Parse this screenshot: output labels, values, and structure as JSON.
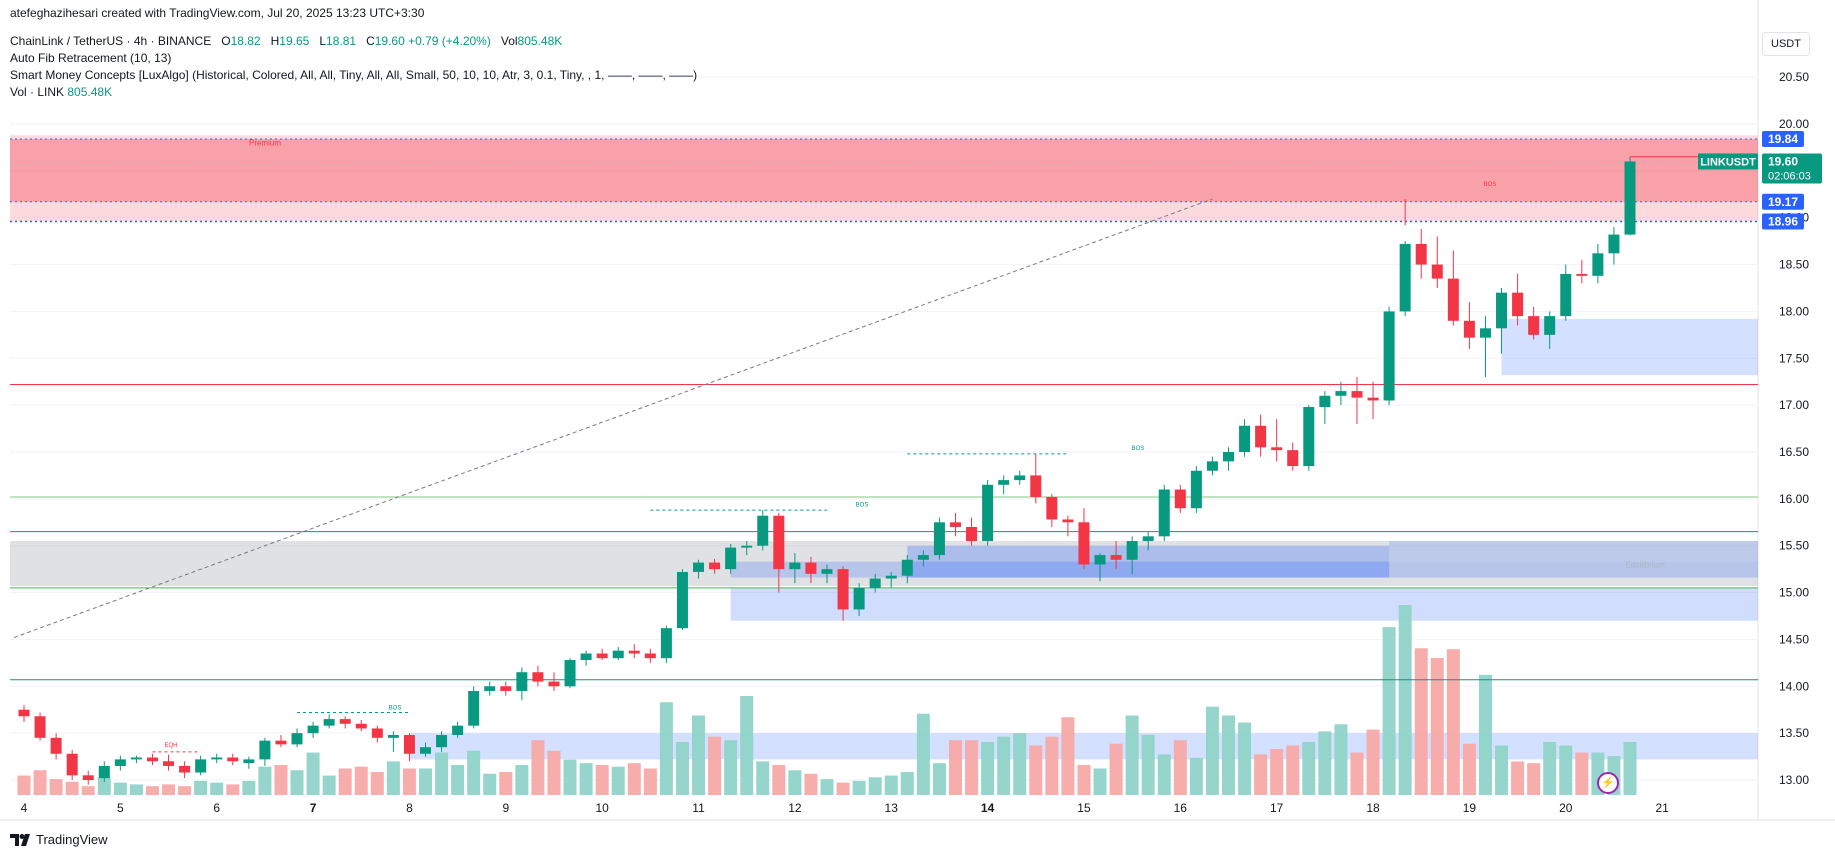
{
  "header": {
    "created_by": "atefeghazihesari created with TradingView.com, Jul 20, 2025 13:23 UTC+3:30",
    "symbol": "ChainLink / TetherUS · 4h · BINANCE",
    "ohlc": {
      "open_label": "O",
      "open": "18.82",
      "high_label": "H",
      "high": "19.65",
      "low_label": "L",
      "low": "18.81",
      "close_label": "C",
      "close": "19.60",
      "change": "+0.79 (+4.20%)",
      "vol_label": "Vol",
      "vol": "805.48K"
    },
    "indicator_1": "Auto Fib Retracement (10, 13)",
    "indicator_2": "Smart Money Concepts [LuxAlgo] (Historical, Colored, All, All, Tiny, All, All, Small, 50, 10, 10, Atr, 3, 0.1, Tiny, , 1, ——, ——, ——)",
    "indicator_3_label": "Vol · LINK",
    "indicator_3_value": "805.48K"
  },
  "currency": "USDT",
  "brand": "TradingView",
  "colors": {
    "up": "#089981",
    "down": "#f23645",
    "premium": "#f23645",
    "discount": "#2962ff",
    "equilibrium": "#b2b5be",
    "volume_up": "#8fd3c8",
    "volume_down": "#f7a9a7"
  },
  "chart_data": {
    "type": "candlestick",
    "timeframe": "4h",
    "ylim": [
      12.85,
      20.8
    ],
    "yticks": [
      "20.50",
      "20.00",
      "19.50",
      "19.00",
      "18.50",
      "18.00",
      "17.50",
      "17.00",
      "16.50",
      "16.00",
      "15.50",
      "15.00",
      "14.50",
      "14.00",
      "13.50",
      "13.00"
    ],
    "xticks": [
      "4",
      "5",
      "6",
      "7",
      "8",
      "9",
      "10",
      "11",
      "12",
      "13",
      "14",
      "15",
      "16",
      "17",
      "18",
      "19",
      "20",
      "21"
    ],
    "candles": [
      [
        13.75,
        13.8,
        13.62,
        13.68
      ],
      [
        13.68,
        13.72,
        13.42,
        13.45
      ],
      [
        13.45,
        13.5,
        13.22,
        13.28
      ],
      [
        13.28,
        13.32,
        13.0,
        13.05
      ],
      [
        13.05,
        13.1,
        12.95,
        13.0
      ],
      [
        13.02,
        13.2,
        12.98,
        13.15
      ],
      [
        13.15,
        13.26,
        13.1,
        13.22
      ],
      [
        13.22,
        13.26,
        13.18,
        13.24
      ],
      [
        13.24,
        13.28,
        13.16,
        13.2
      ],
      [
        13.2,
        13.27,
        13.1,
        13.15
      ],
      [
        13.15,
        13.2,
        13.02,
        13.08
      ],
      [
        13.08,
        13.26,
        13.05,
        13.22
      ],
      [
        13.22,
        13.28,
        13.18,
        13.24
      ],
      [
        13.24,
        13.28,
        13.16,
        13.2
      ],
      [
        13.18,
        13.25,
        13.12,
        13.22
      ],
      [
        13.22,
        13.45,
        13.15,
        13.42
      ],
      [
        13.42,
        13.48,
        13.35,
        13.38
      ],
      [
        13.38,
        13.55,
        13.35,
        13.5
      ],
      [
        13.5,
        13.62,
        13.45,
        13.58
      ],
      [
        13.58,
        13.7,
        13.55,
        13.65
      ],
      [
        13.65,
        13.68,
        13.55,
        13.6
      ],
      [
        13.6,
        13.64,
        13.52,
        13.55
      ],
      [
        13.55,
        13.58,
        13.4,
        13.45
      ],
      [
        13.45,
        13.52,
        13.3,
        13.48
      ],
      [
        13.48,
        13.5,
        13.2,
        13.28
      ],
      [
        13.28,
        13.4,
        13.25,
        13.35
      ],
      [
        13.35,
        13.52,
        13.3,
        13.48
      ],
      [
        13.48,
        13.62,
        13.45,
        13.58
      ],
      [
        13.58,
        14.0,
        13.55,
        13.95
      ],
      [
        13.95,
        14.05,
        13.9,
        14.0
      ],
      [
        14.0,
        14.05,
        13.9,
        13.95
      ],
      [
        13.95,
        14.2,
        13.85,
        14.15
      ],
      [
        14.15,
        14.22,
        14.0,
        14.05
      ],
      [
        14.05,
        14.15,
        13.95,
        14.0
      ],
      [
        14.0,
        14.3,
        13.98,
        14.28
      ],
      [
        14.28,
        14.38,
        14.22,
        14.35
      ],
      [
        14.35,
        14.4,
        14.28,
        14.3
      ],
      [
        14.3,
        14.42,
        14.28,
        14.38
      ],
      [
        14.38,
        14.45,
        14.3,
        14.35
      ],
      [
        14.35,
        14.4,
        14.25,
        14.3
      ],
      [
        14.3,
        14.65,
        14.25,
        14.62
      ],
      [
        14.62,
        15.25,
        14.6,
        15.22
      ],
      [
        15.22,
        15.35,
        15.15,
        15.32
      ],
      [
        15.32,
        15.36,
        15.2,
        15.25
      ],
      [
        15.25,
        15.52,
        15.2,
        15.48
      ],
      [
        15.48,
        15.55,
        15.4,
        15.5
      ],
      [
        15.5,
        15.88,
        15.45,
        15.82
      ],
      [
        15.82,
        15.85,
        15.0,
        15.25
      ],
      [
        15.25,
        15.42,
        15.1,
        15.32
      ],
      [
        15.32,
        15.38,
        15.1,
        15.2
      ],
      [
        15.2,
        15.3,
        15.1,
        15.25
      ],
      [
        15.25,
        15.28,
        14.7,
        14.82
      ],
      [
        14.82,
        15.1,
        14.75,
        15.05
      ],
      [
        15.05,
        15.2,
        15.0,
        15.15
      ],
      [
        15.15,
        15.22,
        15.05,
        15.18
      ],
      [
        15.18,
        15.4,
        15.1,
        15.35
      ],
      [
        15.35,
        15.45,
        15.28,
        15.4
      ],
      [
        15.4,
        15.8,
        15.35,
        15.75
      ],
      [
        15.75,
        15.85,
        15.6,
        15.7
      ],
      [
        15.7,
        15.8,
        15.5,
        15.55
      ],
      [
        15.55,
        16.2,
        15.5,
        16.15
      ],
      [
        16.15,
        16.25,
        16.05,
        16.2
      ],
      [
        16.2,
        16.3,
        16.15,
        16.25
      ],
      [
        16.25,
        16.48,
        15.95,
        16.02
      ],
      [
        16.02,
        16.05,
        15.7,
        15.78
      ],
      [
        15.78,
        15.82,
        15.6,
        15.75
      ],
      [
        15.75,
        15.9,
        15.25,
        15.3
      ],
      [
        15.3,
        15.42,
        15.12,
        15.4
      ],
      [
        15.4,
        15.55,
        15.25,
        15.35
      ],
      [
        15.35,
        15.6,
        15.2,
        15.55
      ],
      [
        15.55,
        15.65,
        15.45,
        15.6
      ],
      [
        15.6,
        16.15,
        15.55,
        16.1
      ],
      [
        16.1,
        16.15,
        15.85,
        15.9
      ],
      [
        15.9,
        16.35,
        15.85,
        16.3
      ],
      [
        16.3,
        16.45,
        16.25,
        16.4
      ],
      [
        16.4,
        16.55,
        16.3,
        16.5
      ],
      [
        16.5,
        16.85,
        16.45,
        16.78
      ],
      [
        16.78,
        16.9,
        16.45,
        16.55
      ],
      [
        16.55,
        16.85,
        16.4,
        16.52
      ],
      [
        16.52,
        16.6,
        16.3,
        16.35
      ],
      [
        16.35,
        17.0,
        16.3,
        16.98
      ],
      [
        16.98,
        17.15,
        16.8,
        17.1
      ],
      [
        17.1,
        17.25,
        17.0,
        17.15
      ],
      [
        17.15,
        17.3,
        16.8,
        17.08
      ],
      [
        17.08,
        17.25,
        16.85,
        17.05
      ],
      [
        17.05,
        18.05,
        17.0,
        18.0
      ],
      [
        18.0,
        18.75,
        17.95,
        18.72
      ],
      [
        18.72,
        18.88,
        18.35,
        18.5
      ],
      [
        18.5,
        18.8,
        18.25,
        18.35
      ],
      [
        18.35,
        18.65,
        17.85,
        17.9
      ],
      [
        17.9,
        18.1,
        17.6,
        17.72
      ],
      [
        17.72,
        17.95,
        17.3,
        17.82
      ],
      [
        17.82,
        18.25,
        17.55,
        18.2
      ],
      [
        18.2,
        18.4,
        17.85,
        17.95
      ],
      [
        17.95,
        18.05,
        17.7,
        17.75
      ],
      [
        17.75,
        18.0,
        17.6,
        17.95
      ],
      [
        17.95,
        18.5,
        17.9,
        18.4
      ],
      [
        18.4,
        18.55,
        18.3,
        18.38
      ],
      [
        18.38,
        18.72,
        18.3,
        18.62
      ],
      [
        18.62,
        18.9,
        18.5,
        18.82
      ],
      [
        18.82,
        19.65,
        18.81,
        19.6
      ]
    ],
    "volumes": [
      0.22,
      0.28,
      0.18,
      0.15,
      0.1,
      0.2,
      0.14,
      0.12,
      0.1,
      0.12,
      0.1,
      0.16,
      0.14,
      0.12,
      0.16,
      0.32,
      0.34,
      0.28,
      0.48,
      0.22,
      0.3,
      0.32,
      0.26,
      0.38,
      0.3,
      0.3,
      0.48,
      0.34,
      0.5,
      0.24,
      0.26,
      0.34,
      0.62,
      0.5,
      0.4,
      0.36,
      0.34,
      0.32,
      0.36,
      0.3,
      1.05,
      0.6,
      0.9,
      0.66,
      0.62,
      1.12,
      0.38,
      0.34,
      0.28,
      0.24,
      0.18,
      0.14,
      0.16,
      0.2,
      0.22,
      0.26,
      0.92,
      0.36,
      0.62,
      0.62,
      0.6,
      0.66,
      0.7,
      0.56,
      0.66,
      0.88,
      0.34,
      0.3,
      0.58,
      0.9,
      0.68,
      0.46,
      0.62,
      0.42,
      1.0,
      0.9,
      0.82,
      0.46,
      0.52,
      0.56,
      0.6,
      0.72,
      0.8,
      0.48,
      0.74,
      1.9,
      2.15,
      1.66,
      1.55,
      1.65,
      0.58,
      1.36,
      0.56,
      0.38,
      0.36,
      0.6,
      0.56,
      0.48,
      0.48,
      0.44,
      0.6
    ],
    "vol_scale_max": 2.15,
    "levels": [
      {
        "price": 19.84,
        "label": "19.84"
      },
      {
        "price": 19.6,
        "label": "19.60"
      },
      {
        "price": 19.17,
        "label": "19.17"
      },
      {
        "price": 18.96,
        "label": "18.96"
      }
    ],
    "last_price_label": "LINKUSDT",
    "countdown": "02:06:03",
    "annotations": [
      "Premium",
      "BOS",
      "BOS",
      "BOS",
      "BOS",
      "EQH",
      "Equilibrium"
    ]
  }
}
